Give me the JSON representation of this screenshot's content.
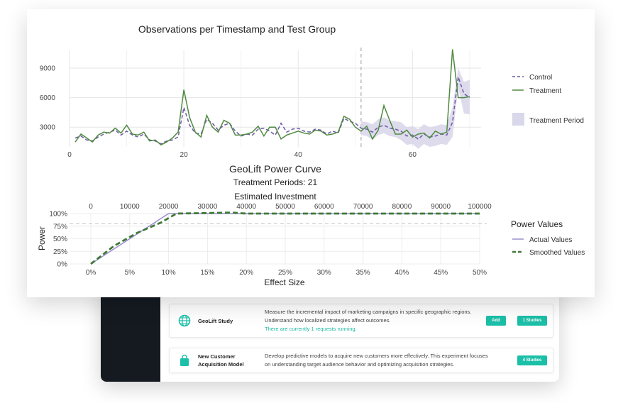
{
  "chart_data": [
    {
      "type": "line",
      "title": "Observations per Timestamp and Test Group",
      "xlabel": "",
      "ylabel": "",
      "xlim": [
        0,
        72
      ],
      "ylim": [
        1000,
        10800
      ],
      "x_ticks": [
        0,
        20,
        40,
        60
      ],
      "y_ticks": [
        3000,
        6000,
        9000
      ],
      "treatment_start": 51,
      "legend": {
        "placement": "right"
      },
      "grid": true,
      "series": [
        {
          "name": "Control",
          "color": "#6e5aa6",
          "style": "dashed",
          "x": [
            1,
            2,
            3,
            4,
            5,
            6,
            7,
            8,
            9,
            10,
            11,
            12,
            13,
            14,
            15,
            16,
            17,
            18,
            19,
            20,
            21,
            22,
            23,
            24,
            25,
            26,
            27,
            28,
            29,
            30,
            31,
            32,
            33,
            34,
            35,
            36,
            37,
            38,
            39,
            40,
            41,
            42,
            43,
            44,
            45,
            46,
            47,
            48,
            49,
            50,
            51,
            52,
            53,
            54,
            55,
            56,
            57,
            58,
            59,
            60,
            61,
            62,
            63,
            64,
            65,
            66,
            67,
            68,
            69,
            70
          ],
          "values": [
            1900,
            2100,
            1700,
            1600,
            2000,
            2300,
            2500,
            2700,
            2200,
            2600,
            2200,
            2000,
            2300,
            1700,
            1600,
            1300,
            1600,
            1700,
            2000,
            5000,
            3200,
            2400,
            2300,
            3800,
            3400,
            2700,
            3200,
            3400,
            2600,
            2100,
            2300,
            2200,
            2800,
            2900,
            2600,
            2200,
            3400,
            2500,
            2800,
            2900,
            2600,
            2500,
            2800,
            2700,
            2300,
            2600,
            2400,
            3900,
            3600,
            3400,
            2900,
            2800,
            2500,
            3000,
            3200,
            2900,
            2800,
            2600,
            2100,
            2200,
            1800,
            2300,
            2000,
            2100,
            2300,
            2200,
            3500,
            8100,
            6400,
            6000
          ]
        },
        {
          "name": "Treatment",
          "color": "#4f8a41",
          "style": "solid",
          "x": [
            1,
            2,
            3,
            4,
            5,
            6,
            7,
            8,
            9,
            10,
            11,
            12,
            13,
            14,
            15,
            16,
            17,
            18,
            19,
            20,
            21,
            22,
            23,
            24,
            25,
            26,
            27,
            28,
            29,
            30,
            31,
            32,
            33,
            34,
            35,
            36,
            37,
            38,
            39,
            40,
            41,
            42,
            43,
            44,
            45,
            46,
            47,
            48,
            49,
            50,
            51,
            52,
            53,
            54,
            55,
            56,
            57,
            58,
            59,
            60,
            61,
            62,
            63,
            64,
            65,
            66,
            67,
            68,
            69,
            70
          ],
          "values": [
            1500,
            2300,
            1900,
            1500,
            2200,
            2500,
            2400,
            2900,
            2400,
            3200,
            2300,
            2200,
            2500,
            1600,
            1700,
            1200,
            1500,
            1900,
            2500,
            6800,
            4000,
            2500,
            2000,
            4200,
            3000,
            2500,
            3700,
            3400,
            2200,
            2200,
            2300,
            2500,
            3100,
            2100,
            3000,
            3000,
            1800,
            2200,
            2400,
            2600,
            2400,
            2300,
            2700,
            2600,
            2200,
            2300,
            2500,
            4100,
            3800,
            3000,
            2600,
            3100,
            1800,
            2700,
            5200,
            3700,
            2300,
            2300,
            2700,
            2000,
            2300,
            2400,
            1900,
            2600,
            2300,
            2500,
            10900,
            6000,
            6000,
            6100
          ]
        }
      ],
      "band": {
        "name": "Treatment Period",
        "color": "#d9d7ea",
        "x": [
          51,
          52,
          53,
          54,
          55,
          56,
          57,
          58,
          59,
          60,
          61,
          62,
          63,
          64,
          65,
          66,
          67,
          68,
          69,
          70
        ],
        "upper": [
          3600,
          3500,
          3300,
          3800,
          4000,
          3700,
          3600,
          3500,
          3000,
          3100,
          2800,
          3300,
          3000,
          3100,
          3300,
          3200,
          5000,
          9000,
          7600,
          7800
        ],
        "lower": [
          2200,
          2100,
          1700,
          2200,
          2400,
          2100,
          2000,
          1700,
          1200,
          1300,
          800,
          1300,
          1000,
          1100,
          1300,
          1200,
          2000,
          7000,
          4400,
          4300
        ]
      }
    },
    {
      "type": "line",
      "title": "GeoLift Power Curve",
      "subtitle": "Treatment Periods: 21",
      "top_axis_label": "Estimated Investment",
      "xlabel": "Effect Size",
      "ylabel": "Power",
      "xlim": [
        0,
        50
      ],
      "ylim": [
        0,
        100
      ],
      "x_ticks": [
        0,
        5,
        10,
        15,
        20,
        25,
        30,
        35,
        40,
        45,
        50
      ],
      "x_tick_labels": [
        "0%",
        "5%",
        "10%",
        "15%",
        "20%",
        "25%",
        "30%",
        "35%",
        "40%",
        "45%",
        "50%"
      ],
      "top_ticks": [
        0,
        10000,
        20000,
        30000,
        40000,
        50000,
        60000,
        70000,
        80000,
        90000,
        100000
      ],
      "y_ticks": [
        0,
        25,
        50,
        75,
        100
      ],
      "y_tick_labels": [
        "0%",
        "25%",
        "50%",
        "75%",
        "100%"
      ],
      "reference_line": 80,
      "legend": {
        "title": "Power Values",
        "placement": "right"
      },
      "series": [
        {
          "name": "Actual Values",
          "color": "#9b8fd1",
          "style": "solid",
          "x": [
            0,
            10,
            20,
            30,
            40,
            50
          ],
          "values": [
            0,
            100,
            100,
            100,
            100,
            100
          ]
        },
        {
          "name": "Smoothed Values",
          "color": "#3f7a34",
          "style": "dashed",
          "x": [
            0,
            3,
            6,
            9,
            11,
            15,
            18,
            20,
            25,
            30,
            35,
            40,
            45,
            50
          ],
          "values": [
            0,
            36,
            62,
            82,
            100,
            101,
            102,
            100,
            100,
            100,
            100,
            100,
            100,
            100
          ]
        }
      ]
    }
  ],
  "studies": [
    {
      "icon": "globe-icon",
      "title": "GeoLift Study",
      "description": "Measure the incremental impact of marketing campaigns in specific geographic regions. Understand how localized strategies affect outcomes.",
      "status": "There are currently 1 requests running.",
      "add_label": "Add",
      "count_label": "1 Studies"
    },
    {
      "icon": "shopping-bag-icon",
      "title": "New Customer Acquisition Model",
      "description": "Develop predictive models to acquire new customers more effectively. This experiment focuses on understanding target audience behavior and optimizing acquisition strategies.",
      "status": "",
      "add_label": "",
      "count_label": "4 Studies"
    }
  ],
  "colors": {
    "accent": "#1cbfa8",
    "sidebar": "#151a21"
  }
}
